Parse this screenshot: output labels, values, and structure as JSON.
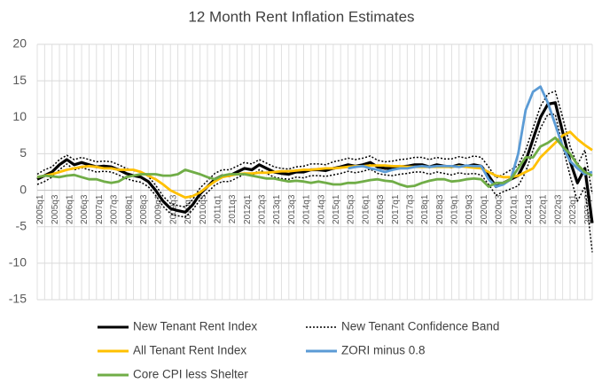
{
  "chart_data": {
    "type": "line",
    "title": "12 Month Rent Inflation Estimates",
    "categories": [
      "2005q1",
      null,
      "2005q3",
      null,
      "2006q1",
      null,
      "2006q3",
      null,
      "2007q1",
      null,
      "2007q3",
      null,
      "2008q1",
      null,
      "2008q3",
      null,
      "2009q1",
      null,
      "2009q3",
      null,
      "2010q1",
      null,
      "2010q3",
      null,
      "2011q1",
      null,
      "2011q3",
      null,
      "2012q1",
      null,
      "2012q3",
      null,
      "2013q1",
      null,
      "2013q3",
      null,
      "2014q1",
      null,
      "2014q3",
      null,
      "2015q1",
      null,
      "2015q3",
      null,
      "2016q1",
      null,
      "2016q3",
      null,
      "2017q1",
      null,
      "2017q3",
      null,
      "2018q1",
      null,
      "2018q3",
      null,
      "2019q1",
      null,
      "2019q3",
      null,
      "2020q1",
      null,
      "2020q3",
      null,
      "2021q1",
      null,
      "2021q3",
      null,
      "2022q1",
      null,
      "2022q3",
      null,
      "2023q1",
      null,
      "2023q3",
      null
    ],
    "ylim": [
      -15,
      20
    ],
    "yticks": [
      -15,
      -10,
      -5,
      0,
      5,
      10,
      15,
      20
    ],
    "grid": true,
    "series": [
      {
        "name": "New Tenant Rent Index",
        "color": "#000000",
        "values": [
          1.5,
          2,
          2.5,
          3.5,
          4.2,
          3.5,
          3.8,
          3.5,
          3.2,
          3.3,
          3.2,
          2.8,
          2.3,
          2,
          1.8,
          1.2,
          0,
          -1.5,
          -2.5,
          -2.8,
          -3,
          -2,
          -0.5,
          0.5,
          1.5,
          2,
          2,
          2.5,
          3,
          2.8,
          3.5,
          3,
          2.5,
          2.3,
          2.2,
          2.5,
          2.5,
          2.8,
          2.8,
          2.7,
          3,
          3.2,
          3.5,
          3.3,
          3.5,
          3.8,
          3.2,
          3,
          3,
          3.2,
          3.3,
          3.5,
          3.5,
          3.2,
          3.5,
          3.3,
          3.2,
          3.5,
          3.3,
          3.5,
          3.3,
          2,
          0.5,
          1,
          1.5,
          2,
          4,
          7,
          10,
          11.8,
          12,
          8,
          4,
          1,
          3,
          -4.5
        ]
      },
      {
        "name": "New Tenant Confidence Band",
        "color": "#000000",
        "dashed": true,
        "upper": [
          2.2,
          2.8,
          3.2,
          4.2,
          4.8,
          4.2,
          4.5,
          4.2,
          3.9,
          4,
          3.9,
          3.5,
          3,
          2.7,
          2.5,
          1.9,
          0.7,
          -0.8,
          -1.8,
          -2.1,
          -2.3,
          -1.3,
          0.3,
          1.3,
          2.3,
          2.8,
          2.8,
          3.3,
          3.8,
          3.6,
          4.2,
          3.7,
          3.2,
          3,
          2.9,
          3.2,
          3.3,
          3.6,
          3.6,
          3.5,
          3.9,
          4.1,
          4.4,
          4.2,
          4.4,
          4.7,
          4.1,
          3.9,
          4,
          4.2,
          4.3,
          4.5,
          4.5,
          4.2,
          4.5,
          4.3,
          4.3,
          4.6,
          4.4,
          4.7,
          4.5,
          3.2,
          1.7,
          2.2,
          2.8,
          3.4,
          5.5,
          8.5,
          11.5,
          13.2,
          13.6,
          10,
          6,
          3.5,
          5.5,
          -0.5
        ],
        "lower": [
          0.8,
          1.2,
          1.8,
          2.8,
          3.6,
          2.8,
          3.1,
          2.8,
          2.5,
          2.6,
          2.5,
          2.1,
          1.6,
          1.3,
          1.1,
          0.5,
          -0.7,
          -2.2,
          -3.2,
          -3.5,
          -3.7,
          -2.7,
          -1.3,
          -0.3,
          0.7,
          1.2,
          1.2,
          1.7,
          2.2,
          2,
          2.8,
          2.3,
          1.8,
          1.6,
          1.5,
          1.8,
          1.7,
          2,
          2,
          1.9,
          2.1,
          2.3,
          2.6,
          2.4,
          2.6,
          2.9,
          2.3,
          2.1,
          2,
          2.2,
          2.3,
          2.5,
          2.5,
          2.2,
          2.5,
          2.3,
          2.1,
          2.4,
          2.2,
          2.3,
          2.1,
          0.8,
          -0.7,
          -0.2,
          0.2,
          0.6,
          2.5,
          5.5,
          8.5,
          10.4,
          10.4,
          6,
          2,
          -1.5,
          0.5,
          -8.5
        ]
      },
      {
        "name": "All Tenant Rent Index",
        "color": "#ffc000",
        "values": [
          1.8,
          2,
          2.2,
          2.5,
          2.8,
          3,
          3.2,
          3.3,
          3.2,
          3,
          3,
          2.8,
          2.8,
          2.8,
          2.5,
          2,
          1.5,
          0.8,
          0,
          -0.5,
          -1,
          -0.8,
          -0.3,
          0.5,
          1.2,
          1.8,
          2,
          2.2,
          2.3,
          2.3,
          2.4,
          2.4,
          2.5,
          2.6,
          2.6,
          2.7,
          2.8,
          2.8,
          2.9,
          3,
          3,
          3.1,
          3.2,
          3.3,
          3.3,
          3.4,
          3.4,
          3.4,
          3.3,
          3.3,
          3.2,
          3.2,
          3.2,
          3.2,
          3.2,
          3.2,
          3.2,
          3.3,
          3.2,
          3.1,
          3,
          2.5,
          2,
          1.8,
          1.8,
          2,
          2.5,
          3,
          4.5,
          5.5,
          6.5,
          7.5,
          8,
          7,
          6.2,
          5.5
        ]
      },
      {
        "name": "ZORI minus 0.8",
        "color": "#5b9bd5",
        "values": [
          null,
          null,
          null,
          null,
          null,
          null,
          null,
          null,
          null,
          null,
          null,
          null,
          null,
          null,
          null,
          null,
          null,
          null,
          null,
          null,
          null,
          null,
          null,
          null,
          null,
          null,
          null,
          null,
          null,
          null,
          null,
          null,
          null,
          null,
          null,
          null,
          null,
          null,
          null,
          null,
          null,
          null,
          3,
          3.2,
          3.3,
          3,
          2.8,
          2.5,
          2.8,
          3,
          3,
          3.2,
          3.3,
          3.2,
          3.3,
          3.3,
          3.3,
          3.2,
          3.4,
          3.3,
          3.3,
          1.5,
          0.5,
          0.8,
          1.5,
          5,
          11,
          13.5,
          14.2,
          12,
          9,
          6,
          4,
          3,
          2.2,
          2.5
        ]
      },
      {
        "name": "Core CPI less Shelter",
        "color": "#70ad47",
        "values": [
          1.8,
          2,
          1.9,
          1.8,
          2,
          2.1,
          1.8,
          1.5,
          1.5,
          1.2,
          1,
          1.2,
          1.8,
          2,
          2.2,
          2.2,
          2.2,
          2,
          2,
          2.2,
          2.8,
          2.5,
          2.2,
          1.8,
          1.5,
          2,
          2.2,
          2.2,
          2.2,
          2,
          1.8,
          1.6,
          1.6,
          1.4,
          1.2,
          1.3,
          1.2,
          1,
          1.2,
          1,
          0.8,
          0.8,
          1,
          1,
          1.2,
          1.4,
          1.5,
          1.3,
          1.2,
          0.8,
          0.5,
          0.6,
          1,
          1.3,
          1.5,
          1.5,
          1.2,
          1.3,
          1.5,
          1.6,
          1.5,
          0.5,
          1,
          1,
          1.5,
          3,
          4.5,
          4.5,
          6,
          6.5,
          7.2,
          6,
          5,
          3.5,
          2.5,
          2
        ]
      }
    ]
  }
}
